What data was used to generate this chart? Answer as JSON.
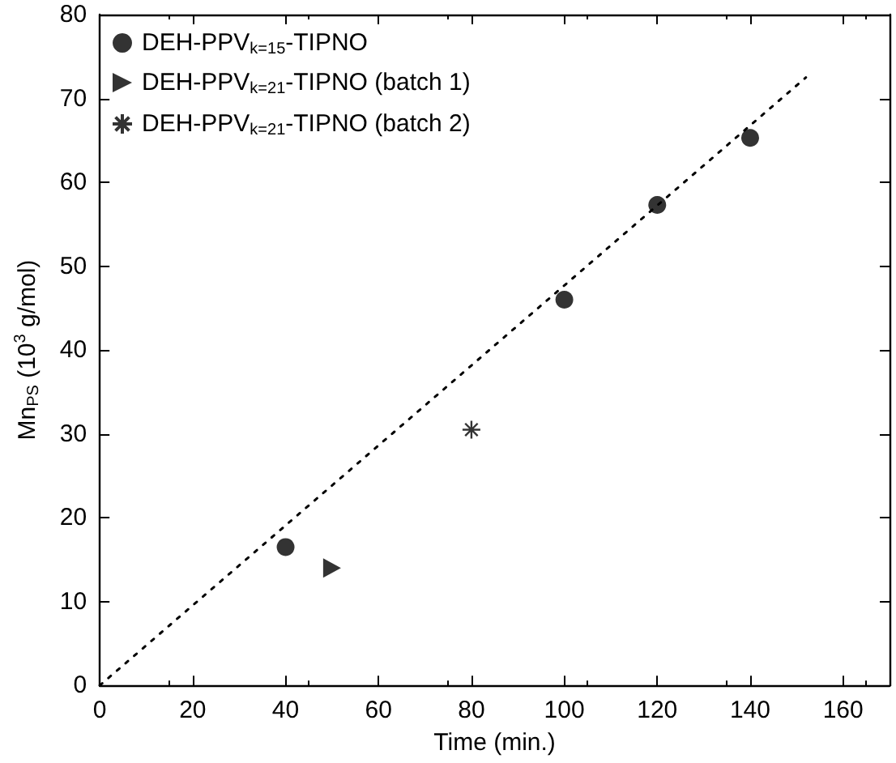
{
  "chart_data": {
    "type": "scatter",
    "xlabel": "Time (min.)",
    "ylabel": "Mn$_{PS}$ (10$^{3}$ g/mol)",
    "xlim": [
      0,
      170
    ],
    "xticks": [
      0,
      20,
      40,
      60,
      80,
      100,
      120,
      140,
      160
    ],
    "ylim": [
      0,
      80
    ],
    "yticks": [
      0,
      10,
      20,
      30,
      40,
      50,
      60,
      70,
      80
    ],
    "grid": false,
    "legend": "top left",
    "series": [
      {
        "name": "DEH-PPV$_{k=15}$-TIPNO",
        "color": "#000000",
        "marker": "circle",
        "x": [
          40,
          100,
          120,
          140
        ],
        "values": [
          16.5,
          46,
          57.3,
          65.3
        ]
      },
      {
        "name": "DEH-PPV$_{k=21}$-TIPNO (batch 1)",
        "color": "#000000",
        "marker": "triangle",
        "x": [
          50
        ],
        "values": [
          14
        ]
      },
      {
        "name": "DEH-PPV$_{k=21}$-TIPNO (batch 2)",
        "color": "#000000",
        "marker": "cross",
        "x": [
          80
        ],
        "values": [
          30.5
        ]
      },
      {
        "type": "line",
        "color": "#000000",
        "marker": "none",
        "line_style": "dotted",
        "x": [
          0,
          152
        ],
        "values": [
          0,
          72.5
        ]
      }
    ]
  }
}
